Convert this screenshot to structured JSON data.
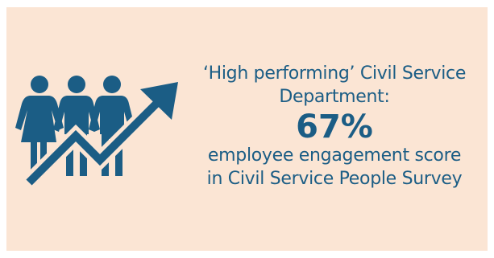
{
  "headline": {
    "line1": "‘High performing’ Civil Service",
    "line2": "Department:"
  },
  "score": "67%",
  "caption": {
    "line1": "employee engagement score",
    "line2": "in Civil Service People Survey"
  },
  "icon": "people-rising-arrow-icon",
  "colors": {
    "background": "#fbe5d4",
    "accent": "#1b5d85"
  }
}
